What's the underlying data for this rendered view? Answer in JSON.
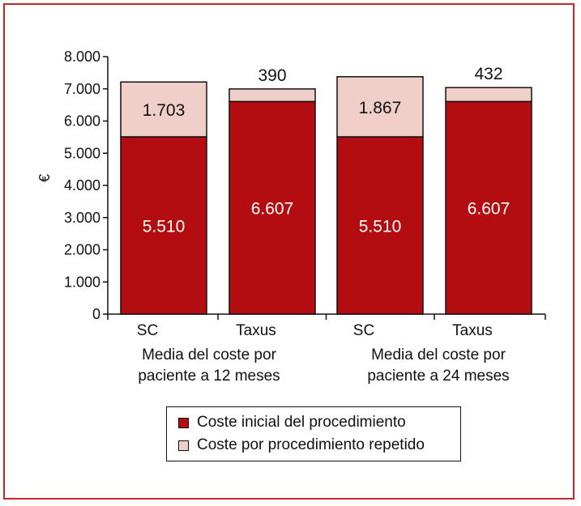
{
  "chart_data": {
    "type": "bar",
    "stacked": true,
    "ylabel": "€",
    "ylim": [
      0,
      8000
    ],
    "yticks": [
      {
        "value": 0,
        "label": "0"
      },
      {
        "value": 1000,
        "label": "1.000"
      },
      {
        "value": 2000,
        "label": "2.000"
      },
      {
        "value": 3000,
        "label": "3.000"
      },
      {
        "value": 4000,
        "label": "4.000"
      },
      {
        "value": 5000,
        "label": "5.000"
      },
      {
        "value": 6000,
        "label": "6.000"
      },
      {
        "value": 7000,
        "label": "7.000"
      },
      {
        "value": 8000,
        "label": "8.000"
      }
    ],
    "categories": [
      "SC",
      "Taxus",
      "SC",
      "Taxus"
    ],
    "groups": [
      {
        "label_line1": "Media del coste por",
        "label_line2": "paciente a 12 meses"
      },
      {
        "label_line1": "Media del coste por",
        "label_line2": "paciente a 24 meses"
      }
    ],
    "series": [
      {
        "name": "Coste inicial del procedimiento",
        "color": "#b30d12",
        "values": [
          5510,
          6607,
          5510,
          6607
        ],
        "labels": [
          "5.510",
          "6.607",
          "5.510",
          "6.607"
        ]
      },
      {
        "name": "Coste por procedimiento repetido",
        "color": "#f0cfc8",
        "values": [
          1703,
          390,
          1867,
          432
        ],
        "labels": [
          "1.703",
          "390",
          "1.867",
          "432"
        ]
      }
    ],
    "legend_position": "bottom-center",
    "grid": false
  }
}
